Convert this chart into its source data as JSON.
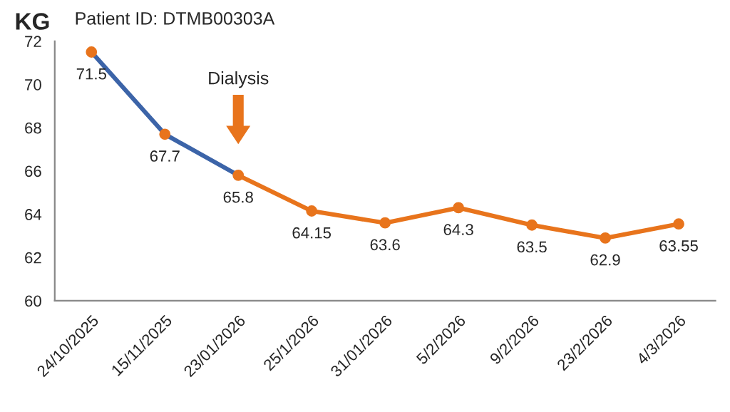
{
  "chart_data": {
    "type": "line",
    "ylabel": "KG",
    "categories": [
      "24/10/2025",
      "15/11/2025",
      "23/01/2026",
      "25/1/2026",
      "31/01/2026",
      "5/2/2026",
      "9/2/2026",
      "23/2/2026",
      "4/3/2026"
    ],
    "series": [
      {
        "color": "#3c64a8",
        "values": [
          71.5,
          67.7,
          65.8,
          null,
          null,
          null,
          null,
          null,
          null
        ]
      },
      {
        "color": "#e8741c",
        "values": [
          null,
          null,
          65.8,
          64.15,
          63.6,
          64.3,
          63.5,
          62.9,
          63.55
        ]
      },
      {
        "type": "scatter",
        "color": "#e8741c",
        "values": [
          71.5,
          67.7,
          65.8,
          64.15,
          63.6,
          64.3,
          63.5,
          62.9,
          63.55
        ],
        "value_labels": [
          "71.5",
          "67.7",
          "65.8",
          "64.15",
          "63.6",
          "64.3",
          "63.5",
          "62.9",
          "63.55"
        ]
      }
    ],
    "ylim": [
      60,
      72
    ],
    "yticks": [
      60,
      62,
      64,
      66,
      68,
      70,
      72
    ],
    "grid": false,
    "annotations": [
      "Patient ID: DTMB00303A",
      "Dialysis"
    ]
  }
}
